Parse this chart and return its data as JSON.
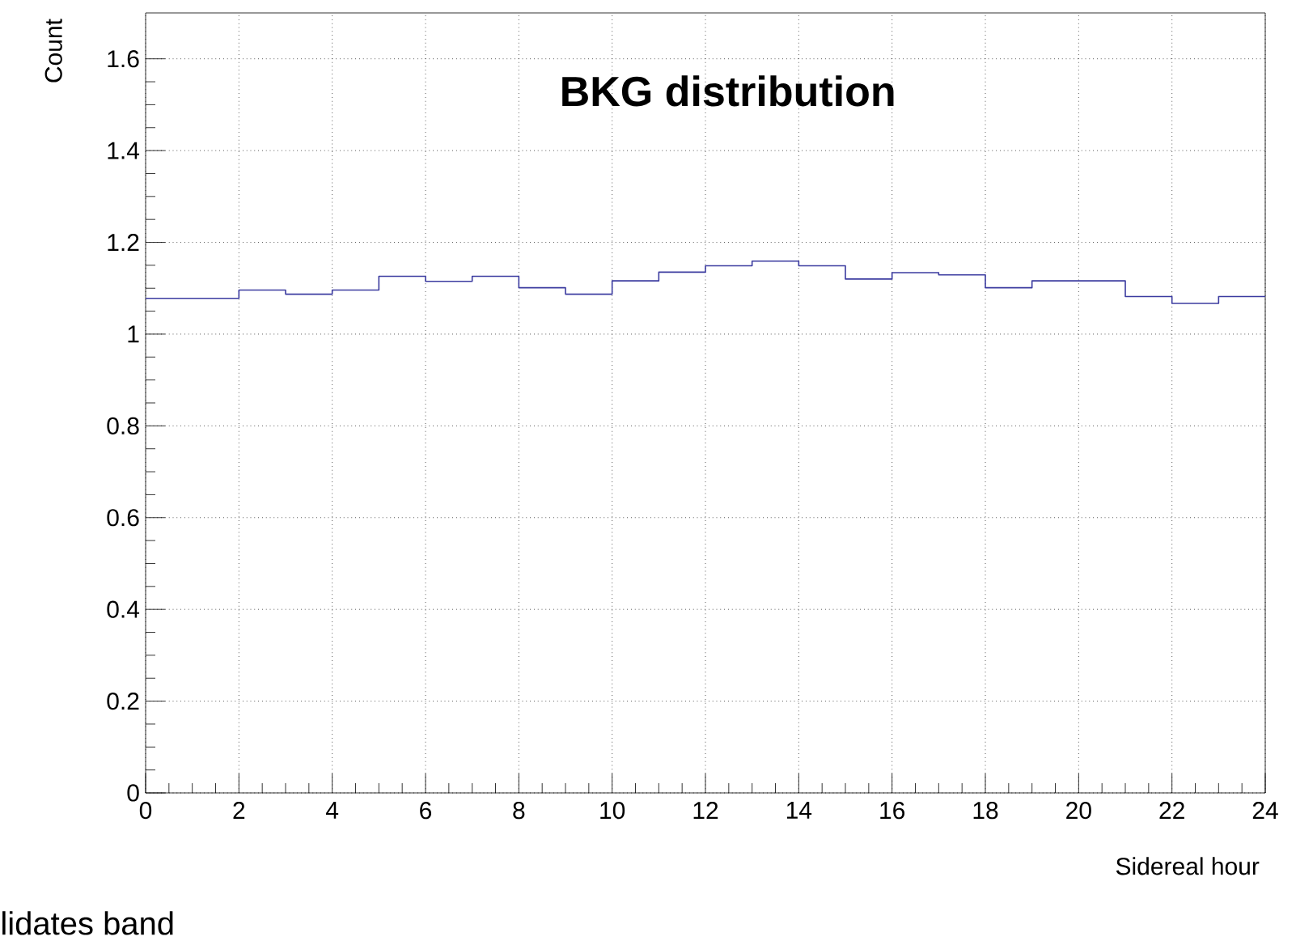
{
  "chart_data": {
    "type": "histogram",
    "title": "BKG distribution",
    "xlabel": "Sidereal hour",
    "ylabel": "Count",
    "bins": [
      0,
      1,
      2,
      3,
      4,
      5,
      6,
      7,
      8,
      9,
      10,
      11,
      12,
      13,
      14,
      15,
      16,
      17,
      18,
      19,
      20,
      21,
      22,
      23,
      24
    ],
    "values": [
      1.078,
      1.078,
      1.096,
      1.087,
      1.096,
      1.126,
      1.115,
      1.126,
      1.101,
      1.087,
      1.116,
      1.135,
      1.149,
      1.159,
      1.149,
      1.12,
      1.134,
      1.129,
      1.101,
      1.116,
      1.116,
      1.082,
      1.067,
      1.082
    ],
    "color": "#3c3ca0",
    "xlim": [
      0,
      24
    ],
    "ylim": [
      0,
      1.7
    ],
    "xticks": [
      0,
      2,
      4,
      6,
      8,
      10,
      12,
      14,
      16,
      18,
      20,
      22,
      24
    ],
    "yticks": [
      0,
      0.2,
      0.4,
      0.6,
      0.8,
      1,
      1.2,
      1.4,
      1.6
    ],
    "grid": true,
    "annotations": [
      "lidates band"
    ]
  }
}
